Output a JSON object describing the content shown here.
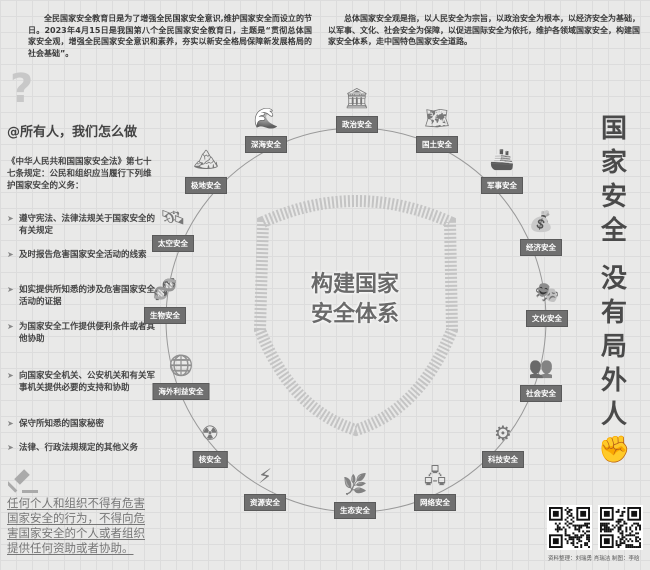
{
  "intro": {
    "left": "全民国家安全教育日是为了增强全民国家安全意识,维护国家安全而设立的节日。2023年4月15日是我国第八个全民国家安全教育日，主题是“贯彻总体国家安全观，增强全民国家安全意识和素养，夯实以新安全格局保障新发展格局的社会基础”。",
    "right": "总体国家安全观是指，以人民安全为宗旨，以政治安全为根本，以经济安全为基础，以军事、文化、社会安全为保障，以促进国际安全为依托，维护各领域国家安全，构建国家安全体系，走中国特色国家安全道路。"
  },
  "left": {
    "heading": "@所有人，我们怎么做",
    "law": "《中华人民共和国国家安全法》第七十七条规定：公民和组织应当履行下列维护国家安全的义务：",
    "bullets": [
      "遵守宪法、法律法规关于国家安全的有关规定",
      "及时报告危害国家安全活动的线索",
      "如实提供所知悉的涉及危害国家安全活动的证据",
      "为国家安全工作提供便利条件或者其他协助",
      "向国家安全机关、公安机关和有关军事机关提供必要的支持和协助",
      "保守所知悉的国家秘密",
      "法律、行政法规规定的其他义务"
    ],
    "warning": "任何个人和组织不得有危害国家安全的行为，不得向危害国家安全的个人或者组织提供任何资助或者协助。"
  },
  "center": {
    "line1": "构建国家",
    "line2": "安全体系"
  },
  "nodes": [
    {
      "label": "政治安全",
      "icon": "building-icon",
      "glyph": "🏛"
    },
    {
      "label": "国土安全",
      "icon": "china-map-icon",
      "glyph": "🗺"
    },
    {
      "label": "军事安全",
      "icon": "warship-icon",
      "glyph": "🚢"
    },
    {
      "label": "经济安全",
      "icon": "money-icon",
      "glyph": "💰"
    },
    {
      "label": "文化安全",
      "icon": "theater-icon",
      "glyph": "🎭"
    },
    {
      "label": "社会安全",
      "icon": "crowd-icon",
      "glyph": "👥"
    },
    {
      "label": "科技安全",
      "icon": "robot-arm-icon",
      "glyph": "⚙"
    },
    {
      "label": "网络安全",
      "icon": "network-icon",
      "glyph": "🖧"
    },
    {
      "label": "生态安全",
      "icon": "leaf-icon",
      "glyph": "🌿"
    },
    {
      "label": "资源安全",
      "icon": "energy-icon",
      "glyph": "⚡"
    },
    {
      "label": "核安全",
      "icon": "nuclear-icon",
      "glyph": "☢"
    },
    {
      "label": "海外利益安全",
      "icon": "globe-person-icon",
      "glyph": "🌐"
    },
    {
      "label": "生物安全",
      "icon": "dna-icon",
      "glyph": "🧬"
    },
    {
      "label": "太空安全",
      "icon": "satellite-icon",
      "glyph": "🛰"
    },
    {
      "label": "极地安全",
      "icon": "mountain-icon",
      "glyph": "🏔"
    },
    {
      "label": "深海安全",
      "icon": "waves-icon",
      "glyph": "🌊"
    }
  ],
  "title": {
    "line1": "国家安全",
    "line2": "没有局外人"
  },
  "credit": "资料整理：刘瑞勇  肖瑞洁  制图：李晗"
}
